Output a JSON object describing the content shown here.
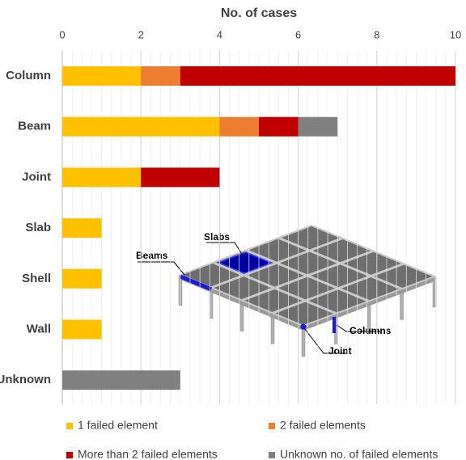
{
  "chart_data": {
    "type": "bar",
    "orientation": "horizontal",
    "stacked": true,
    "title": "No. of cases",
    "categories": [
      "Column",
      "Beam",
      "Joint",
      "Slab",
      "Shell",
      "Wall",
      "Unknown"
    ],
    "series": [
      {
        "name": "1 failed element",
        "color": "#ffc000",
        "values": [
          2,
          4,
          2,
          1,
          1,
          1,
          0
        ]
      },
      {
        "name": "2 failed elements",
        "color": "#ed7d31",
        "values": [
          1,
          1,
          0,
          0,
          0,
          0,
          0
        ]
      },
      {
        "name": "More than 2 failed elements",
        "color": "#c00000",
        "values": [
          7,
          1,
          2,
          0,
          0,
          0,
          0
        ]
      },
      {
        "name": "Unknown no. of failed elements",
        "color": "#808080",
        "values": [
          0,
          1,
          0,
          0,
          0,
          0,
          3
        ]
      }
    ],
    "xlim": [
      0,
      10
    ],
    "xticks": [
      0,
      2,
      4,
      6,
      8,
      10
    ],
    "grid": true,
    "legend": "bottom",
    "illustration_labels": [
      "Slabs",
      "Beams",
      "Columns",
      "Joint"
    ]
  }
}
